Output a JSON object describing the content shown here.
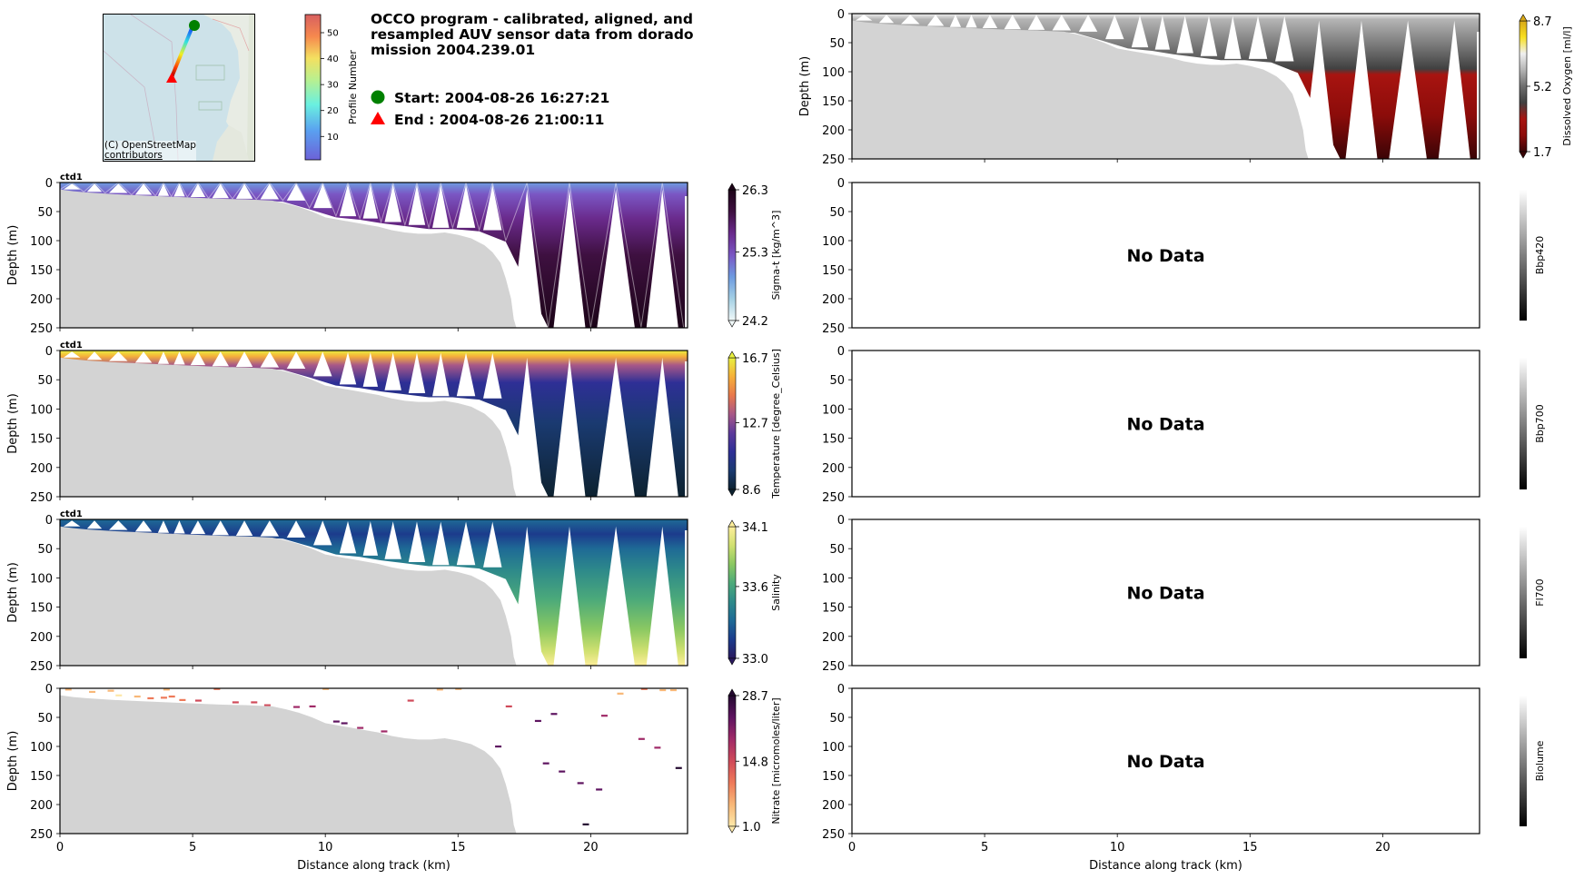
{
  "header": {
    "title": "OCCO program - calibrated, aligned, and resampled AUV sensor data from dorado mission 2004.239.01",
    "start_label": "Start: 2004-08-26 16:27:21",
    "end_label": "End  : 2004-08-26 21:00:11",
    "start_marker_color": "#008000",
    "end_marker_color": "#ff0000"
  },
  "map": {
    "credit": "(C) OpenStreetMap contributors",
    "credit_line1": "(C) OpenStreetMap",
    "credit_line2": "contributors",
    "colorbar": {
      "label": "Profile Number",
      "ticks": [
        "10",
        "20",
        "30",
        "40",
        "50"
      ],
      "tick_values": [
        10,
        20,
        30,
        40,
        50
      ],
      "range": [
        1,
        57
      ],
      "colormap": "rainbow"
    }
  },
  "chart_data": [
    {
      "id": "sigma-t",
      "type": "heatmap",
      "panel_label": "ctd1",
      "xlabel": "",
      "ylabel": "Depth (m)",
      "xlim": [
        0,
        23.65
      ],
      "ylim": [
        250,
        0
      ],
      "xticks": [
        0,
        5,
        10,
        15,
        20
      ],
      "yticks": [
        0,
        50,
        100,
        150,
        200,
        250
      ],
      "show_xticklabels": false,
      "colorbar": {
        "label": "Sigma-t [kg/m^3]",
        "min": 24.2,
        "mid": 25.3,
        "max": 26.3,
        "tick_labels": [
          "26.3",
          "25.3",
          "24.2"
        ],
        "colormap": [
          "#f0f8f8",
          "#a4d0e4",
          "#6e9be0",
          "#7a57c4",
          "#6a2a8c",
          "#3e1040",
          "#1c0418"
        ],
        "extend": "both"
      },
      "no_data": false,
      "track_overlay": true
    },
    {
      "id": "temperature",
      "type": "heatmap",
      "panel_label": "ctd1",
      "ylabel": "Depth (m)",
      "xlim": [
        0,
        23.65
      ],
      "ylim": [
        250,
        0
      ],
      "xticks": [
        0,
        5,
        10,
        15,
        20
      ],
      "yticks": [
        0,
        50,
        100,
        150,
        200,
        250
      ],
      "show_xticklabels": false,
      "colorbar": {
        "label": "Temperature [degree_Celsius]",
        "min": 8.6,
        "mid": 12.7,
        "max": 16.7,
        "tick_labels": [
          "16.7",
          "12.7",
          "8.6"
        ],
        "colormap": [
          "#0d2230",
          "#1a3a70",
          "#2e2f96",
          "#5c3a9a",
          "#a85888",
          "#e8784c",
          "#f6b03a",
          "#e8f040"
        ],
        "extend": "both"
      },
      "no_data": false
    },
    {
      "id": "salinity",
      "type": "heatmap",
      "panel_label": "ctd1",
      "ylabel": "Depth (m)",
      "xlim": [
        0,
        23.65
      ],
      "ylim": [
        250,
        0
      ],
      "xticks": [
        0,
        5,
        10,
        15,
        20
      ],
      "yticks": [
        0,
        50,
        100,
        150,
        200,
        250
      ],
      "show_xticklabels": false,
      "colorbar": {
        "label": "Salinity",
        "min": 33.0,
        "mid": 33.6,
        "max": 34.1,
        "tick_labels": [
          "34.1",
          "33.6",
          "33.0"
        ],
        "colormap": [
          "#2a1a5e",
          "#1c3b8c",
          "#1e6a96",
          "#2e8a8a",
          "#4caa7a",
          "#8ac862",
          "#d0e070",
          "#fdee9a"
        ],
        "extend": "both"
      },
      "no_data": false
    },
    {
      "id": "nitrate",
      "type": "scatter",
      "panel_label": "",
      "xlabel": "Distance along track (km)",
      "ylabel": "Depth (m)",
      "xlim": [
        0,
        23.65
      ],
      "ylim": [
        250,
        0
      ],
      "xticks": [
        0,
        5,
        10,
        15,
        20
      ],
      "xtick_labels": [
        "0",
        "5",
        "10",
        "15",
        "20"
      ],
      "yticks": [
        0,
        50,
        100,
        150,
        200,
        250
      ],
      "show_xticklabels": true,
      "colorbar": {
        "label": "Nitrate [micromoles/liter]",
        "min": 1.0,
        "mid": 14.8,
        "max": 28.7,
        "tick_labels": [
          "28.7",
          "14.8",
          "1.0"
        ],
        "colormap": [
          "#fde8a8",
          "#f8b878",
          "#ee7a5a",
          "#d04a5a",
          "#a02a68",
          "#5e1460",
          "#240a30"
        ],
        "extend": "both"
      },
      "points": [
        {
          "x": 0.3,
          "y": 2,
          "v": 4
        },
        {
          "x": 1.2,
          "y": 6,
          "v": 5
        },
        {
          "x": 1.9,
          "y": 4,
          "v": 6
        },
        {
          "x": 2.2,
          "y": 12,
          "v": 3
        },
        {
          "x": 2.9,
          "y": 14,
          "v": 5
        },
        {
          "x": 3.4,
          "y": 17,
          "v": 8
        },
        {
          "x": 3.9,
          "y": 16,
          "v": 9
        },
        {
          "x": 4.2,
          "y": 14,
          "v": 10
        },
        {
          "x": 4.0,
          "y": 2,
          "v": 7
        },
        {
          "x": 4.6,
          "y": 20,
          "v": 12
        },
        {
          "x": 5.2,
          "y": 21,
          "v": 15
        },
        {
          "x": 5.9,
          "y": 1,
          "v": 8
        },
        {
          "x": 6.6,
          "y": 24,
          "v": 14
        },
        {
          "x": 7.3,
          "y": 24,
          "v": 16
        },
        {
          "x": 7.8,
          "y": 29,
          "v": 14
        },
        {
          "x": 8.9,
          "y": 32,
          "v": 19
        },
        {
          "x": 9.5,
          "y": 31,
          "v": 21
        },
        {
          "x": 10.0,
          "y": 1,
          "v": 7
        },
        {
          "x": 10.4,
          "y": 57,
          "v": 22
        },
        {
          "x": 10.7,
          "y": 60,
          "v": 23
        },
        {
          "x": 11.3,
          "y": 68,
          "v": 20
        },
        {
          "x": 12.2,
          "y": 74,
          "v": 18
        },
        {
          "x": 13.2,
          "y": 21,
          "v": 17
        },
        {
          "x": 14.3,
          "y": 2,
          "v": 6
        },
        {
          "x": 15.0,
          "y": 1,
          "v": 7
        },
        {
          "x": 16.5,
          "y": 100,
          "v": 24
        },
        {
          "x": 16.9,
          "y": 31,
          "v": 16
        },
        {
          "x": 18.0,
          "y": 56,
          "v": 22
        },
        {
          "x": 18.3,
          "y": 129,
          "v": 26
        },
        {
          "x": 18.6,
          "y": 44,
          "v": 22
        },
        {
          "x": 19.8,
          "y": 234,
          "v": 27
        },
        {
          "x": 20.3,
          "y": 174,
          "v": 25
        },
        {
          "x": 20.5,
          "y": 47,
          "v": 20
        },
        {
          "x": 21.1,
          "y": 9,
          "v": 4
        },
        {
          "x": 21.9,
          "y": 87,
          "v": 21
        },
        {
          "x": 22.0,
          "y": 1,
          "v": 8
        },
        {
          "x": 22.5,
          "y": 102,
          "v": 20
        },
        {
          "x": 22.7,
          "y": 3,
          "v": 5
        },
        {
          "x": 23.1,
          "y": 3,
          "v": 6
        },
        {
          "x": 23.3,
          "y": 137,
          "v": 27
        },
        {
          "x": 19.6,
          "y": 163,
          "v": 26
        },
        {
          "x": 18.9,
          "y": 143,
          "v": 25
        }
      ],
      "no_data": false
    },
    {
      "id": "dissolved-oxygen",
      "type": "heatmap",
      "ylabel": "Depth (m)",
      "xlim": [
        0,
        23.65
      ],
      "ylim": [
        250,
        0
      ],
      "xticks": [
        0,
        5,
        10,
        15,
        20
      ],
      "yticks": [
        0,
        50,
        100,
        150,
        200,
        250
      ],
      "show_xticklabels": false,
      "colorbar": {
        "label": "Dissolved Oxygen [ml/l]",
        "min": 1.7,
        "mid": 5.2,
        "max": 8.7,
        "tick_labels": [
          "8.7",
          "5.2",
          "1.7"
        ],
        "colormap": [
          "#3a0406",
          "#8c0c0a",
          "#a81410",
          "#404040",
          "#6e6e6e",
          "#b4b4b4",
          "#f0f0f0",
          "#f8e020",
          "#d8a818"
        ],
        "extend": "both"
      },
      "no_data": false
    },
    {
      "id": "bbp420",
      "type": "heatmap",
      "ylabel": "",
      "xlim": [
        0,
        23.65
      ],
      "ylim": [
        250,
        0
      ],
      "yticks": [
        0,
        50,
        100,
        150,
        200,
        250
      ],
      "show_xticklabels": false,
      "colorbar": {
        "label": "Bbp420",
        "colormap": [
          "#000000",
          "#ffffff"
        ]
      },
      "no_data": true,
      "no_data_text": "No Data"
    },
    {
      "id": "bbp700",
      "type": "heatmap",
      "ylabel": "",
      "xlim": [
        0,
        23.65
      ],
      "ylim": [
        250,
        0
      ],
      "yticks": [
        0,
        50,
        100,
        150,
        200,
        250
      ],
      "show_xticklabels": false,
      "colorbar": {
        "label": "Bbp700",
        "colormap": [
          "#000000",
          "#ffffff"
        ]
      },
      "no_data": true,
      "no_data_text": "No Data"
    },
    {
      "id": "fl700",
      "type": "heatmap",
      "ylabel": "",
      "xlim": [
        0,
        23.65
      ],
      "ylim": [
        250,
        0
      ],
      "yticks": [
        0,
        50,
        100,
        150,
        200,
        250
      ],
      "show_xticklabels": false,
      "colorbar": {
        "label": "Fl700",
        "colormap": [
          "#000000",
          "#ffffff"
        ]
      },
      "no_data": true,
      "no_data_text": "No Data"
    },
    {
      "id": "biolume",
      "type": "heatmap",
      "xlabel": "Distance along track (km)",
      "ylabel": "",
      "xlim": [
        0,
        23.65
      ],
      "ylim": [
        250,
        0
      ],
      "xticks": [
        0,
        5,
        10,
        15,
        20
      ],
      "xtick_labels": [
        "0",
        "5",
        "10",
        "15",
        "20"
      ],
      "yticks": [
        0,
        50,
        100,
        150,
        200,
        250
      ],
      "show_xticklabels": true,
      "colorbar": {
        "label": "Biolume",
        "colormap": [
          "#000000",
          "#ffffff"
        ]
      },
      "no_data": true,
      "no_data_text": "No Data"
    }
  ],
  "bathymetry": {
    "color": "#d3d3d3",
    "distance_km": [
      0,
      0.5,
      1,
      2,
      3,
      4,
      5,
      6,
      7,
      8,
      8.5,
      9,
      9.5,
      10,
      10.5,
      11,
      11.5,
      12,
      12.5,
      13,
      13.5,
      14,
      14.5,
      15,
      15.5,
      16,
      16.3,
      16.6,
      16.8,
      17.0,
      17.1,
      17.2,
      23.65
    ],
    "depth_m": [
      12,
      15,
      17,
      20,
      22,
      24,
      26,
      28,
      29,
      31,
      36,
      42,
      50,
      60,
      64,
      68,
      72,
      76,
      82,
      86,
      88,
      88,
      86,
      90,
      96,
      108,
      120,
      138,
      165,
      200,
      235,
      250,
      250
    ]
  },
  "auv_track": {
    "profile_dives": [
      {
        "x": 0.0,
        "d": 12
      },
      {
        "x": 0.9,
        "d": 16
      },
      {
        "x": 1.7,
        "d": 18
      },
      {
        "x": 2.7,
        "d": 21
      },
      {
        "x": 3.6,
        "d": 23
      },
      {
        "x": 4.2,
        "d": 24
      },
      {
        "x": 4.8,
        "d": 25
      },
      {
        "x": 5.6,
        "d": 27
      },
      {
        "x": 6.5,
        "d": 28
      },
      {
        "x": 7.4,
        "d": 29
      },
      {
        "x": 8.4,
        "d": 31
      },
      {
        "x": 9.4,
        "d": 44
      },
      {
        "x": 10.4,
        "d": 58
      },
      {
        "x": 11.3,
        "d": 62
      },
      {
        "x": 12.1,
        "d": 68
      },
      {
        "x": 13.0,
        "d": 73
      },
      {
        "x": 13.9,
        "d": 78
      },
      {
        "x": 14.8,
        "d": 78
      },
      {
        "x": 15.8,
        "d": 82
      },
      {
        "x": 16.8,
        "d": 100
      },
      {
        "x": 18.4,
        "d": 250
      },
      {
        "x": 20.0,
        "d": 250
      },
      {
        "x": 21.9,
        "d": 250
      },
      {
        "x": 23.5,
        "d": 250
      }
    ]
  }
}
